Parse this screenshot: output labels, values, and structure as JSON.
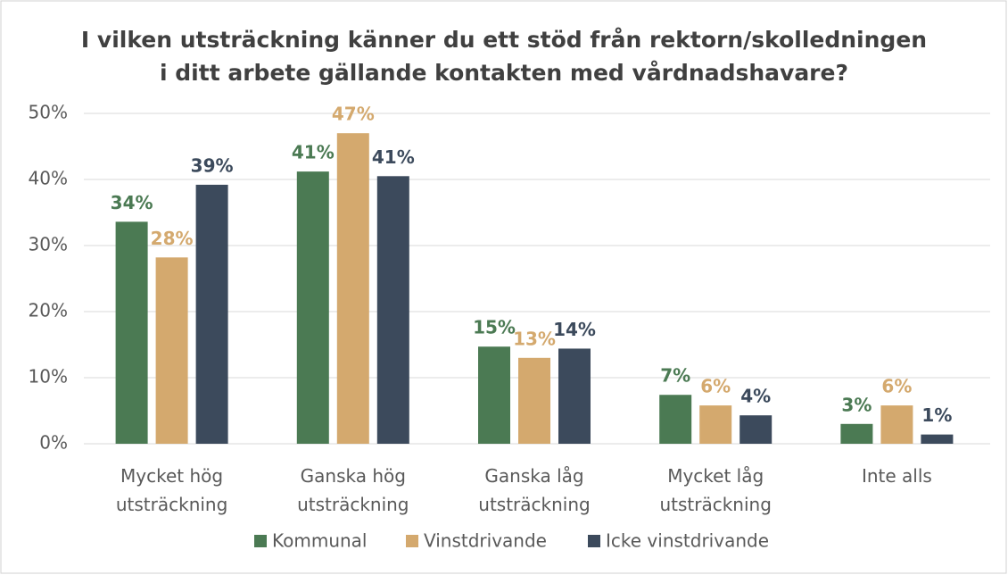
{
  "chart_data": {
    "type": "bar",
    "title": [
      "I vilken utsträckning känner du ett stöd från rektorn/skolledningen",
      "i ditt arbete gällande kontakten med vårdnadshavare?"
    ],
    "categories": [
      "Mycket hög utsträckning",
      "Ganska hög utsträckning",
      "Ganska låg utsträckning",
      "Mycket låg utsträckning",
      "Inte alls"
    ],
    "series": [
      {
        "name": "Kommunal",
        "color": "#4b7a53",
        "values": [
          33.6,
          41.2,
          14.7,
          7.4,
          3.0
        ],
        "value_labels": [
          "34%",
          "41%",
          "15%",
          "7%",
          "3%"
        ]
      },
      {
        "name": "Vinstdrivande",
        "color": "#d4a96e",
        "values": [
          28.2,
          47.0,
          13.0,
          5.8,
          5.8
        ],
        "value_labels": [
          "28%",
          "47%",
          "13%",
          "6%",
          "6%"
        ]
      },
      {
        "name": "Icke vinstdrivande",
        "color": "#3c4a5c",
        "values": [
          39.2,
          40.5,
          14.4,
          4.3,
          1.4
        ],
        "value_labels": [
          "39%",
          "41%",
          "14%",
          "4%",
          "1%"
        ]
      }
    ],
    "ylim": [
      0,
      50
    ],
    "yticks": [
      {
        "value": 0,
        "label": "0%"
      },
      {
        "value": 10,
        "label": "10%"
      },
      {
        "value": 20,
        "label": "20%"
      },
      {
        "value": 30,
        "label": "30%"
      },
      {
        "value": 40,
        "label": "40%"
      },
      {
        "value": 50,
        "label": "50%"
      }
    ],
    "grid": true,
    "legend": "bottom"
  }
}
